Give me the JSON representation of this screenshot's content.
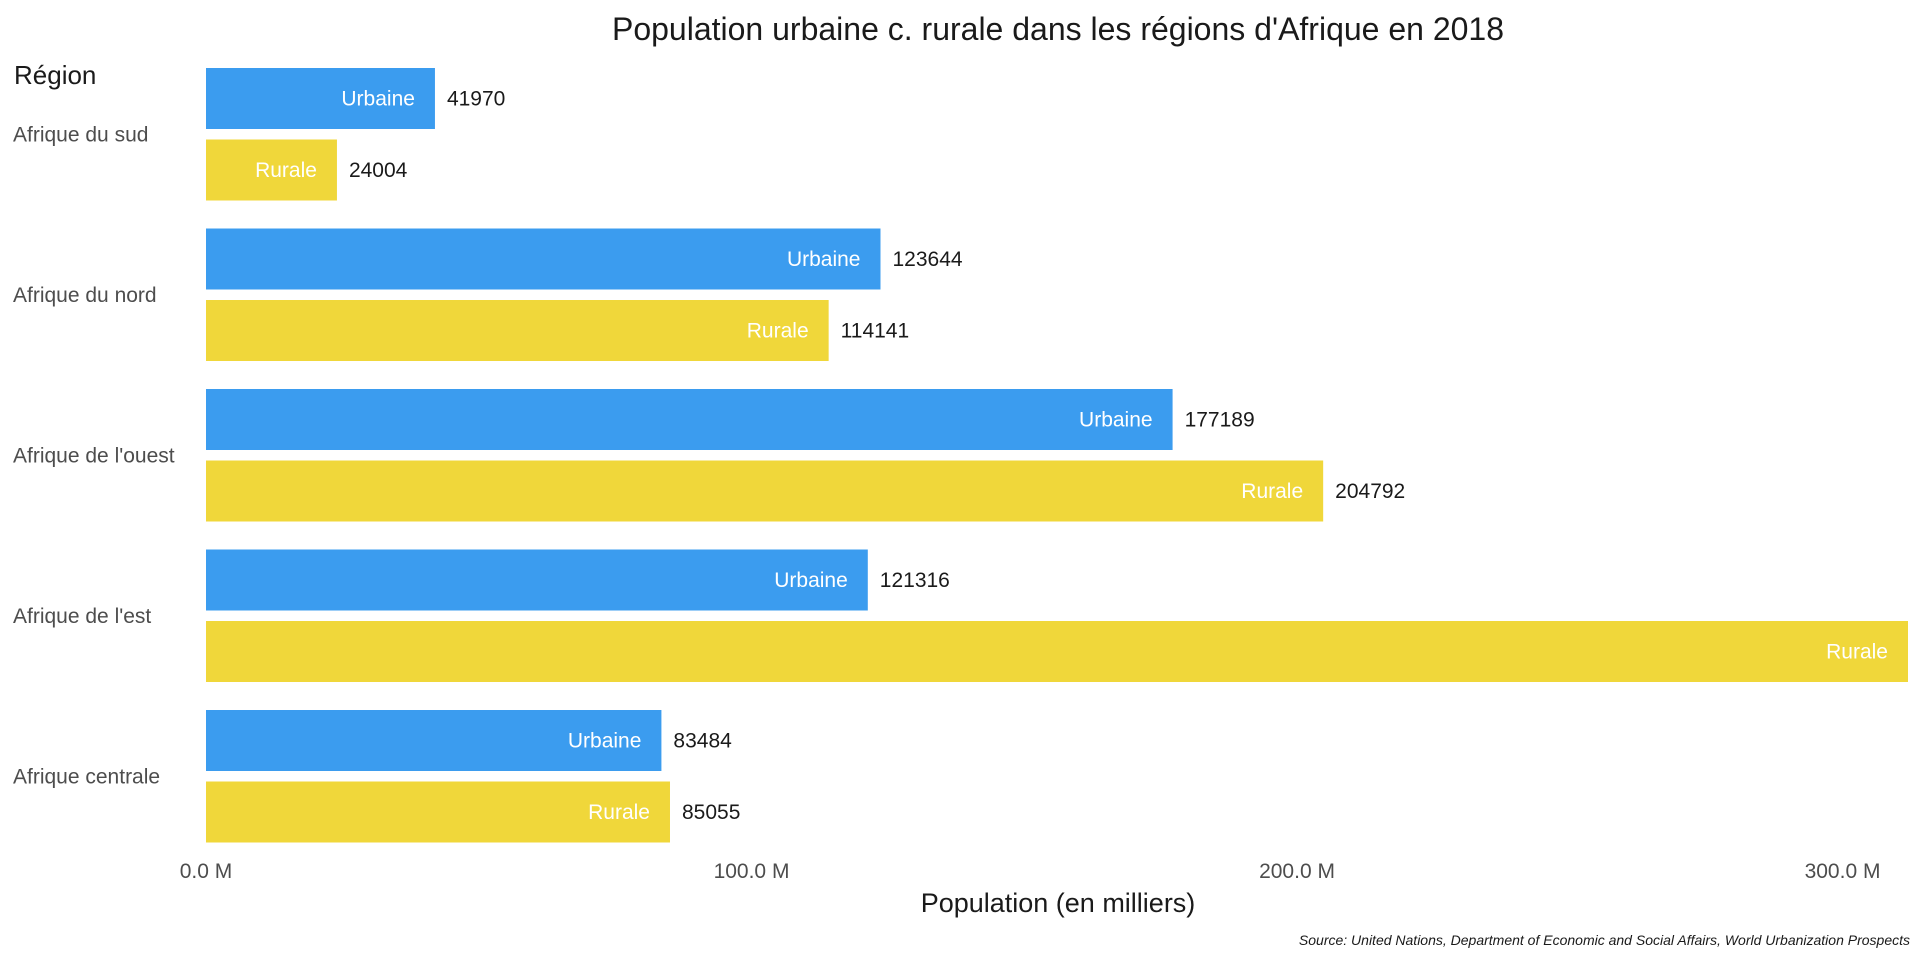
{
  "chart_data": {
    "type": "bar",
    "orientation": "horizontal",
    "title": "Population urbaine c. rurale dans les régions d'Afrique en 2018",
    "ylabel": "Région",
    "xlabel": "Population (en milliers)",
    "caption": "Source: United Nations, Department of Economic and Social Affairs, World Urbanization Prospects",
    "xlim": [
      0,
      312000
    ],
    "x_ticks": [
      {
        "value": 0,
        "label": "0.0 M"
      },
      {
        "value": 100000,
        "label": "100.0 M"
      },
      {
        "value": 200000,
        "label": "200.0 M"
      },
      {
        "value": 300000,
        "label": "300.0 M"
      }
    ],
    "grid": false,
    "colors": {
      "Urbaine": "#3b9cef",
      "Rurale": "#f0d73a"
    },
    "categories": [
      "Afrique du sud",
      "Afrique du nord",
      "Afrique de l'ouest",
      "Afrique de l'est",
      "Afrique centrale"
    ],
    "series": [
      {
        "name": "Urbaine",
        "values": [
          41970,
          123644,
          177189,
          121316,
          83484
        ],
        "value_labels": [
          "41970",
          "123644",
          "177189",
          "121316",
          "83484"
        ]
      },
      {
        "name": "Rurale",
        "values": [
          24004,
          114141,
          204792,
          312000,
          85055
        ],
        "value_labels": [
          "24004",
          "114141",
          "204792",
          "",
          "85055"
        ]
      }
    ]
  }
}
